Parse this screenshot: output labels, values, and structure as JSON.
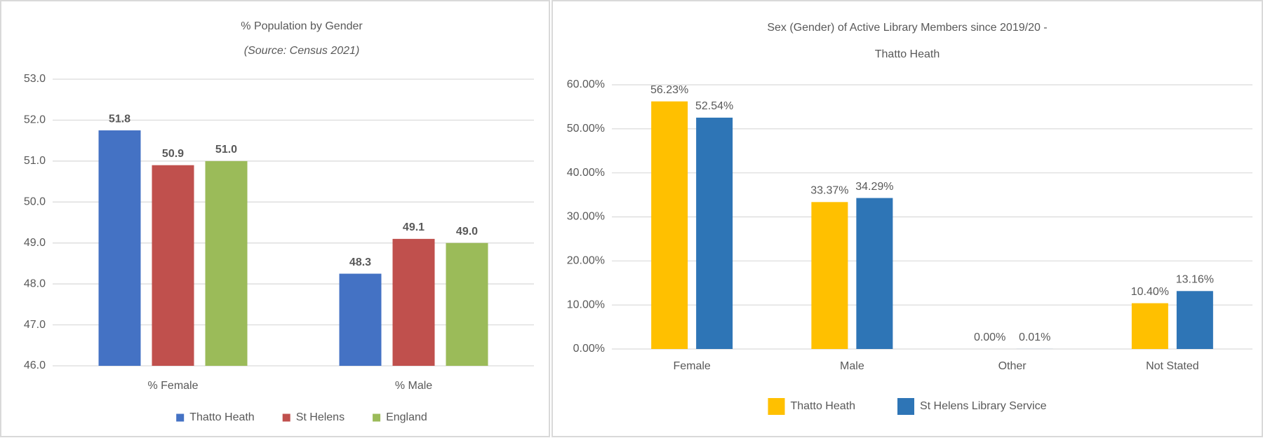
{
  "chart_data": [
    {
      "type": "bar",
      "title": "% Population by Gender",
      "subtitle": "(Source: Census 2021)",
      "categories": [
        "% Female",
        "% Male"
      ],
      "series": [
        {
          "name": "Thatto Heath",
          "color": "#4472C4",
          "values": [
            51.75,
            48.25
          ],
          "value_labels": [
            "51.8",
            "48.3"
          ]
        },
        {
          "name": "St Helens",
          "color": "#C0504D",
          "values": [
            50.9,
            49.1
          ],
          "value_labels": [
            "50.9",
            "49.1"
          ]
        },
        {
          "name": "England",
          "color": "#9BBB59",
          "values": [
            51.0,
            49.0
          ],
          "value_labels": [
            "51.0",
            "49.0"
          ]
        }
      ],
      "ylim": [
        46,
        53
      ],
      "yticks": [
        {
          "value": 46,
          "label": "46.0"
        },
        {
          "value": 47,
          "label": "47.0"
        },
        {
          "value": 48,
          "label": "48.0"
        },
        {
          "value": 49,
          "label": "49.0"
        },
        {
          "value": 50,
          "label": "50.0"
        },
        {
          "value": 51,
          "label": "51.0"
        },
        {
          "value": 52,
          "label": "52.0"
        },
        {
          "value": 53,
          "label": "53.0"
        }
      ],
      "grid": true,
      "legend": "bottom"
    },
    {
      "type": "bar",
      "title": [
        "Sex (Gender) of Active Library Members since 2019/20 -",
        "Thatto Heath"
      ],
      "categories": [
        "Female",
        "Male",
        "Other",
        "Not Stated"
      ],
      "series": [
        {
          "name": "Thatto Heath",
          "color": "#FFC000",
          "values": [
            56.23,
            33.37,
            0.0,
            10.4
          ],
          "value_labels": [
            "56.23%",
            "33.37%",
            "0.00%",
            "10.40%"
          ]
        },
        {
          "name": "St Helens Library Service",
          "color": "#2E75B6",
          "values": [
            52.54,
            34.29,
            0.01,
            13.16
          ],
          "value_labels": [
            "52.54%",
            "34.29%",
            "0.01%",
            "13.16%"
          ]
        }
      ],
      "ylim": [
        0,
        60
      ],
      "yticks": [
        {
          "value": 0,
          "label": "0.00%"
        },
        {
          "value": 10,
          "label": "10.00%"
        },
        {
          "value": 20,
          "label": "20.00%"
        },
        {
          "value": 30,
          "label": "30.00%"
        },
        {
          "value": 40,
          "label": "40.00%"
        },
        {
          "value": 50,
          "label": "50.00%"
        },
        {
          "value": 60,
          "label": "60.00%"
        }
      ],
      "grid": true,
      "legend": "bottom"
    }
  ]
}
